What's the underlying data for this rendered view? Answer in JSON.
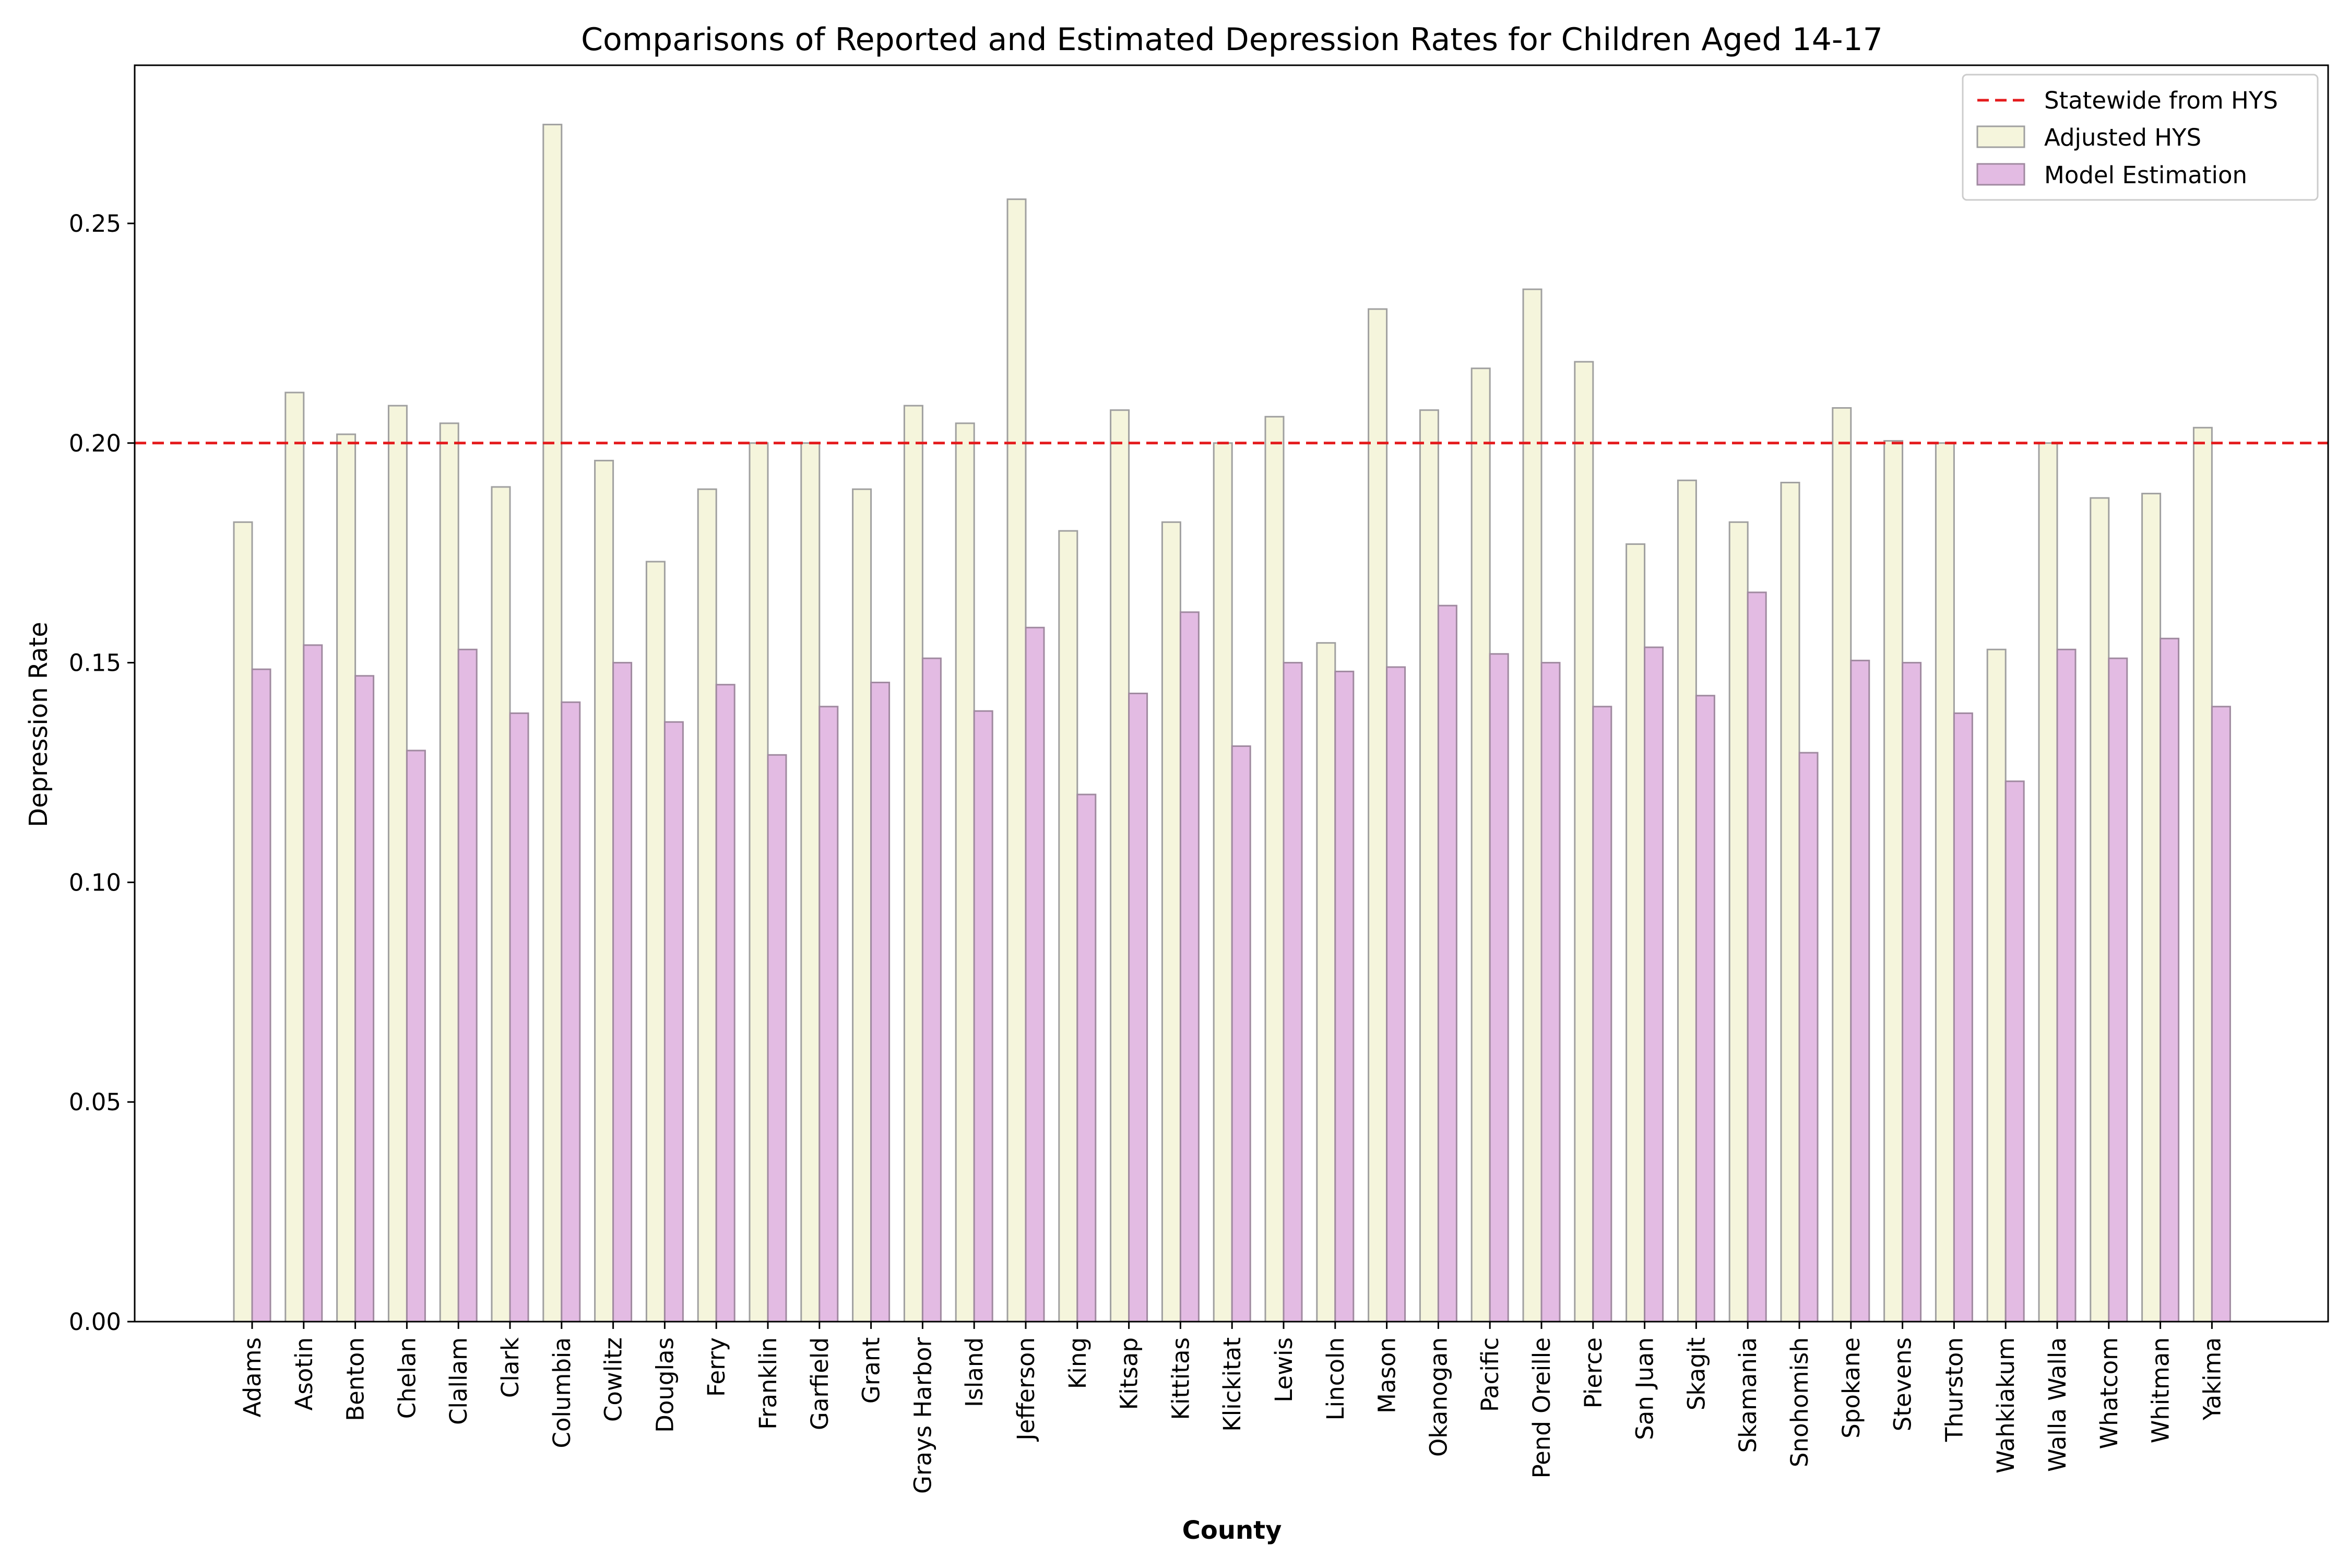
{
  "chart_data": {
    "type": "bar",
    "title": "Comparisons of Reported and Estimated Depression Rates for Children Aged 14-17",
    "xlabel": "County",
    "ylabel": "Depression Rate",
    "ylim": [
      0.0,
      0.286
    ],
    "yticks": [
      0.0,
      0.05,
      0.1,
      0.15,
      0.2,
      0.25
    ],
    "ytick_labels": [
      "0.00",
      "0.05",
      "0.10",
      "0.15",
      "0.20",
      "0.25"
    ],
    "grid": false,
    "legend_position": "top-right",
    "reference_line": {
      "name": "Statewide from HYS",
      "value": 0.2,
      "color": "#e41a1c",
      "style": "dashed"
    },
    "categories": [
      "Adams",
      "Asotin",
      "Benton",
      "Chelan",
      "Clallam",
      "Clark",
      "Columbia",
      "Cowlitz",
      "Douglas",
      "Ferry",
      "Franklin",
      "Garfield",
      "Grant",
      "Grays Harbor",
      "Island",
      "Jefferson",
      "King",
      "Kitsap",
      "Kittitas",
      "Klickitat",
      "Lewis",
      "Lincoln",
      "Mason",
      "Okanogan",
      "Pacific",
      "Pend Oreille",
      "Pierce",
      "San Juan",
      "Skagit",
      "Skamania",
      "Snohomish",
      "Spokane",
      "Stevens",
      "Thurston",
      "Wahkiakum",
      "Walla Walla",
      "Whatcom",
      "Whitman",
      "Yakima"
    ],
    "series": [
      {
        "name": "Adjusted HYS",
        "color": "#f5f5dc",
        "edge_color": "#a0a0a0",
        "values": [
          0.182,
          0.2115,
          0.202,
          0.2085,
          0.2045,
          0.19,
          0.2725,
          0.196,
          0.173,
          0.1895,
          0.2,
          0.2,
          0.1895,
          0.2085,
          0.2045,
          0.2555,
          0.18,
          0.2075,
          0.182,
          0.2,
          0.206,
          0.1545,
          0.2305,
          0.2075,
          0.217,
          0.235,
          0.2185,
          0.177,
          0.1915,
          0.182,
          0.191,
          0.208,
          0.2005,
          0.2,
          0.153,
          0.2,
          0.1875,
          0.1885,
          0.2035
        ]
      },
      {
        "name": "Model Estimation",
        "color": "#e3bbe3",
        "edge_color": "#a08aa0",
        "values": [
          0.1485,
          0.154,
          0.147,
          0.13,
          0.153,
          0.1385,
          0.141,
          0.15,
          0.1365,
          0.145,
          0.129,
          0.14,
          0.1455,
          0.151,
          0.139,
          0.158,
          0.12,
          0.143,
          0.1615,
          0.131,
          0.15,
          0.148,
          0.149,
          0.163,
          0.152,
          0.15,
          0.14,
          0.1535,
          0.1425,
          0.166,
          0.1295,
          0.1505,
          0.15,
          0.1385,
          0.123,
          0.153,
          0.151,
          0.1555,
          0.14
        ]
      }
    ]
  }
}
